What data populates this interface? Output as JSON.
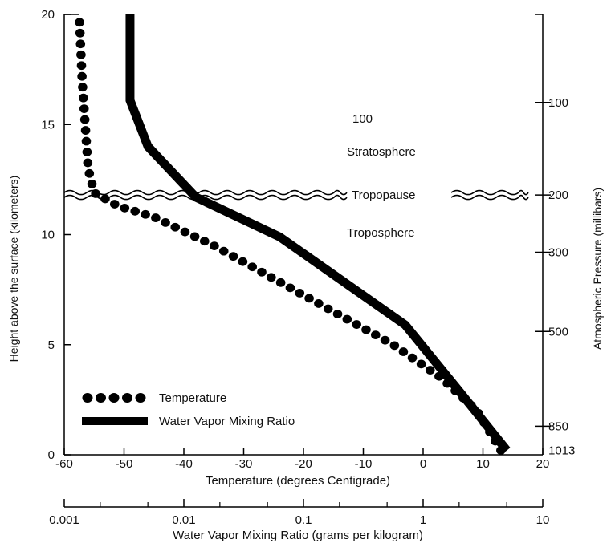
{
  "colors": {
    "ink": "#000000",
    "background": "#ffffff"
  },
  "chart_data": {
    "type": "line",
    "title": "",
    "y_left": {
      "label": "Height above the surface (kilometers)",
      "range": [
        0,
        20
      ],
      "ticks": [
        "0",
        "5",
        "10",
        "15",
        "20"
      ]
    },
    "y_right": {
      "label": "Atmospheric Pressure (millibars)",
      "ticks": [
        {
          "label": "100",
          "height_km": 16
        },
        {
          "label": "200",
          "height_km": 11.8
        },
        {
          "label": "300",
          "height_km": 9.2
        },
        {
          "label": "500",
          "height_km": 5.6
        },
        {
          "label": "850",
          "height_km": 1.3
        },
        {
          "label": "1013",
          "height_km": 0.2
        }
      ]
    },
    "x_temperature": {
      "label": "Temperature (degrees Centigrade)",
      "range": [
        -60,
        20
      ],
      "ticks": [
        "-60",
        "-50",
        "-40",
        "-30",
        "-20",
        "-10",
        "0",
        "10",
        "20"
      ]
    },
    "x_mixing_ratio": {
      "label": "Water Vapor Mixing Ratio (grams per kilogram)",
      "scale": "log",
      "range": [
        0.001,
        10
      ],
      "ticks": [
        "0.001",
        "0.01",
        "0.1",
        "1",
        "10"
      ]
    },
    "series": [
      {
        "name": "Temperature",
        "style": "dotted",
        "axis": "x_temperature",
        "points": [
          [
            13,
            0.2
          ],
          [
            9,
            2
          ],
          [
            3,
            3.5
          ],
          [
            -5,
            5
          ],
          [
            -15,
            6.5
          ],
          [
            -25,
            8
          ],
          [
            -35,
            9.5
          ],
          [
            -45,
            10.8
          ],
          [
            -51,
            11.3
          ],
          [
            -55,
            11.9
          ],
          [
            -56,
            13
          ],
          [
            -56.5,
            15
          ],
          [
            -57,
            17
          ],
          [
            -57.5,
            20
          ]
        ]
      },
      {
        "name": "Water Vapor Mixing Ratio",
        "style": "solid",
        "axis": "x_temperature",
        "points": [
          [
            14,
            0.2
          ],
          [
            6,
            2.9
          ],
          [
            -3,
            5.9
          ],
          [
            -24,
            9.9
          ],
          [
            -38,
            11.7
          ],
          [
            -46,
            14
          ],
          [
            -49,
            16.1
          ],
          [
            -49,
            20
          ]
        ]
      }
    ],
    "annotations": {
      "stratosphere": "Stratosphere",
      "tropopause": "Tropopause",
      "troposphere": "Troposphere",
      "pressure_100": "100"
    },
    "legend": {
      "position": "bottom-left",
      "entries": [
        "Temperature",
        "Water Vapor Mixing Ratio"
      ]
    }
  }
}
